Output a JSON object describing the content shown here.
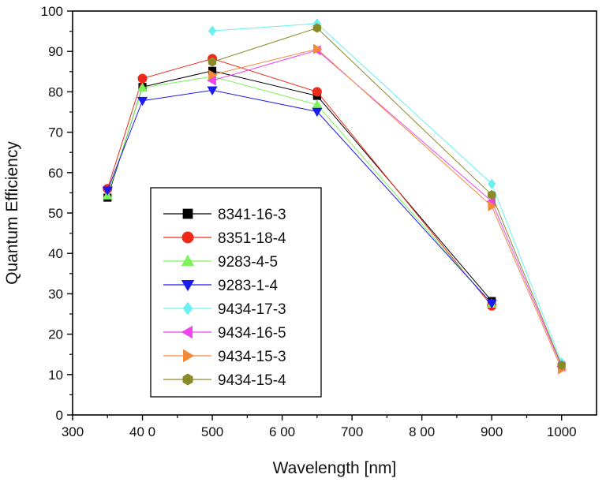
{
  "chart_data": {
    "type": "line",
    "title": "",
    "xlabel": "Wavelength [nm]",
    "ylabel": "Quantum Efficiency",
    "xlim": [
      300,
      1050
    ],
    "ylim": [
      0,
      100
    ],
    "x_ticks": [
      300,
      400,
      500,
      600,
      700,
      800,
      900,
      1000
    ],
    "x_tick_labels": [
      "300",
      "40 0",
      "500",
      "6 00",
      "700",
      "8 00",
      "900",
      "1000"
    ],
    "y_ticks": [
      0,
      10,
      20,
      30,
      40,
      50,
      60,
      70,
      80,
      90,
      100
    ],
    "y_tick_labels": [
      "0",
      "10",
      "20",
      "30",
      "40",
      "50",
      "60",
      "70",
      "80",
      "90",
      "100"
    ],
    "grid": false,
    "legend_position": "lower-left",
    "series": [
      {
        "name": "8341-16-3",
        "color": "#000000",
        "marker": "square",
        "points": [
          [
            350,
            53.8
          ],
          [
            400,
            81.2
          ],
          [
            500,
            85.2
          ],
          [
            650,
            79.0
          ],
          [
            900,
            28.2
          ]
        ]
      },
      {
        "name": "8351-18-4",
        "color": "#ee2a1b",
        "marker": "circle",
        "points": [
          [
            350,
            56.0
          ],
          [
            400,
            83.3
          ],
          [
            500,
            88.2
          ],
          [
            650,
            80.0
          ],
          [
            900,
            27.0
          ]
        ]
      },
      {
        "name": "9283-4-5",
        "color": "#7ef25a",
        "marker": "triangle-up",
        "points": [
          [
            350,
            54.3
          ],
          [
            400,
            81.0
          ],
          [
            500,
            83.8
          ],
          [
            650,
            76.8
          ],
          [
            900,
            27.5
          ]
        ]
      },
      {
        "name": "9283-1-4",
        "color": "#1b1bee",
        "marker": "triangle-down",
        "points": [
          [
            350,
            55.6
          ],
          [
            400,
            77.8
          ],
          [
            500,
            80.4
          ],
          [
            650,
            75.1
          ],
          [
            900,
            27.6
          ]
        ]
      },
      {
        "name": "9434-17-3",
        "color": "#69f0f0",
        "marker": "diamond",
        "points": [
          [
            500,
            95.1
          ],
          [
            650,
            96.9
          ],
          [
            900,
            57.2
          ],
          [
            1000,
            13.0
          ]
        ]
      },
      {
        "name": "9434-16-5",
        "color": "#ee45ee",
        "marker": "triangle-left",
        "points": [
          [
            500,
            82.8
          ],
          [
            650,
            90.3
          ],
          [
            900,
            52.9
          ],
          [
            1000,
            12.0
          ]
        ]
      },
      {
        "name": "9434-15-3",
        "color": "#f28a3c",
        "marker": "triangle-right",
        "points": [
          [
            500,
            84.2
          ],
          [
            650,
            90.6
          ],
          [
            900,
            51.7
          ],
          [
            1000,
            11.3
          ]
        ]
      },
      {
        "name": "9434-15-4",
        "color": "#8a8a2b",
        "marker": "hexagon",
        "points": [
          [
            500,
            87.4
          ],
          [
            650,
            95.8
          ],
          [
            900,
            54.5
          ],
          [
            1000,
            12.3
          ]
        ]
      }
    ]
  }
}
